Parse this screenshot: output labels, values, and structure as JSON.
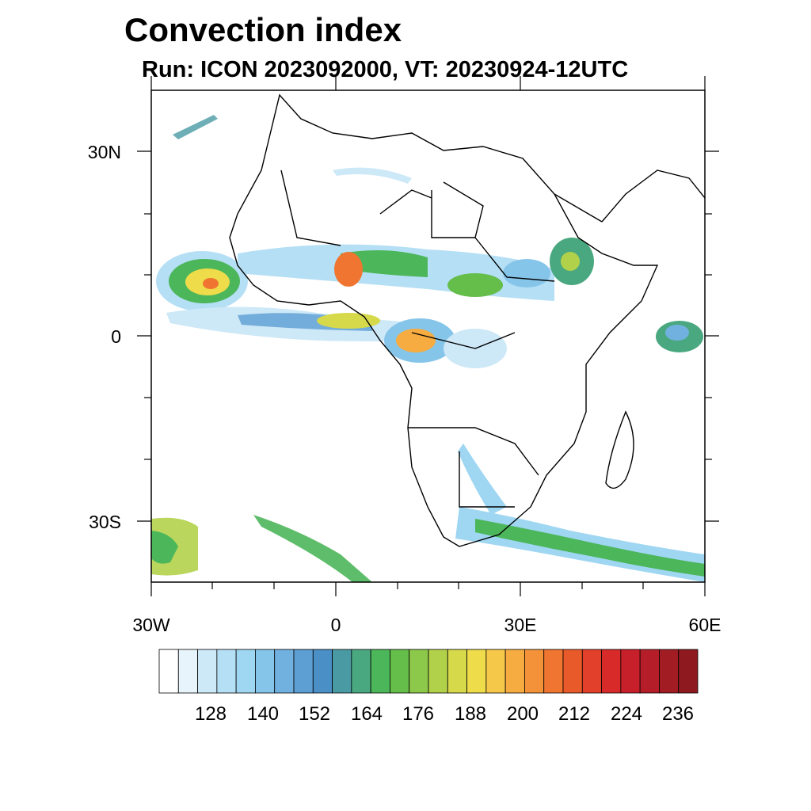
{
  "title": "Convection index",
  "subtitle": "Run: ICON 2023092000,  VT: 20230924-12UTC",
  "map": {
    "region": "Africa",
    "lon_range": [
      -30,
      60
    ],
    "lat_range": [
      -40,
      40
    ],
    "lat_labels": [
      "30N",
      "0",
      "30S"
    ],
    "lon_labels": [
      "30W",
      "0",
      "30E",
      "60E"
    ]
  },
  "colorbar": {
    "labels": [
      "128",
      "140",
      "152",
      "164",
      "176",
      "188",
      "200",
      "212",
      "224",
      "236"
    ],
    "colors": [
      "#ffffff",
      "#e8f4fb",
      "#cde8f7",
      "#b5dff5",
      "#9fd6f2",
      "#86c5ea",
      "#71b1df",
      "#5d9ed3",
      "#4a8fc6",
      "#4a9aa4",
      "#4aa880",
      "#4cb65a",
      "#65bd4a",
      "#8cc84a",
      "#b2d14a",
      "#d5d94a",
      "#eedc4a",
      "#f6c84a",
      "#f6ac40",
      "#f39238",
      "#ef7530",
      "#e95a2a",
      "#e2402a",
      "#d92a2a",
      "#c8202a",
      "#b51e28",
      "#a21c24",
      "#8e1a20"
    ]
  }
}
